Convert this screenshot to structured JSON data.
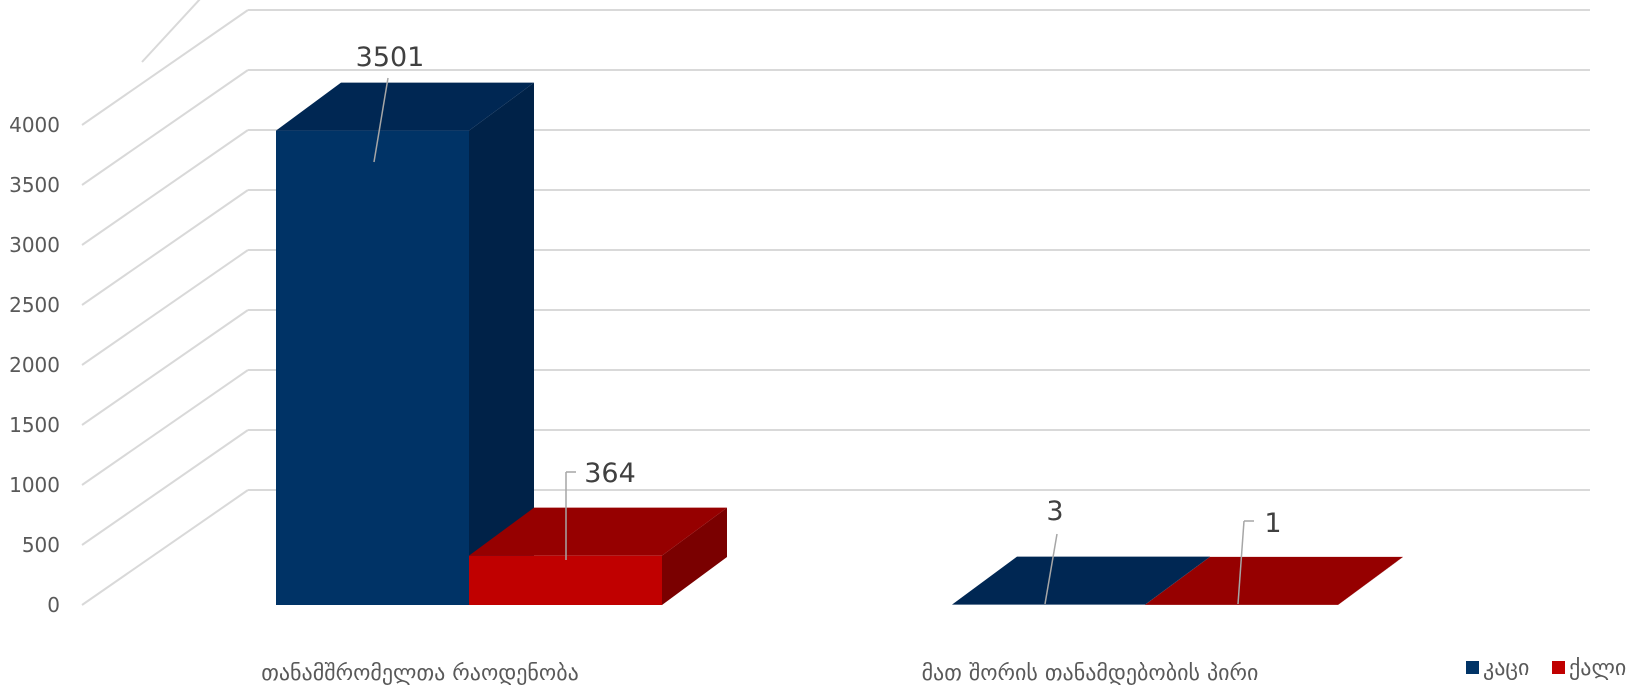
{
  "chart_data": {
    "type": "bar",
    "categories": [
      "თანამშრომელთა რაოდენობა",
      "მათ შორის თანამდებობის პირი"
    ],
    "series": [
      {
        "name": "კაცი",
        "values": [
          3501,
          3
        ]
      },
      {
        "name": "ქალი",
        "values": [
          364,
          1
        ]
      }
    ],
    "y_ticks": [
      "0",
      "500",
      "1000",
      "1500",
      "2000",
      "2500",
      "3000",
      "3500",
      "4000"
    ],
    "ylim": [
      0,
      4000
    ],
    "grid": true,
    "legend_position": "bottom-right",
    "colors": {
      "კაცი": {
        "front": "#003366",
        "top": "#002753",
        "side": "#002248"
      },
      "ქალი": {
        "front": "#c00000",
        "top": "#960000",
        "side": "#7a0000"
      }
    }
  }
}
